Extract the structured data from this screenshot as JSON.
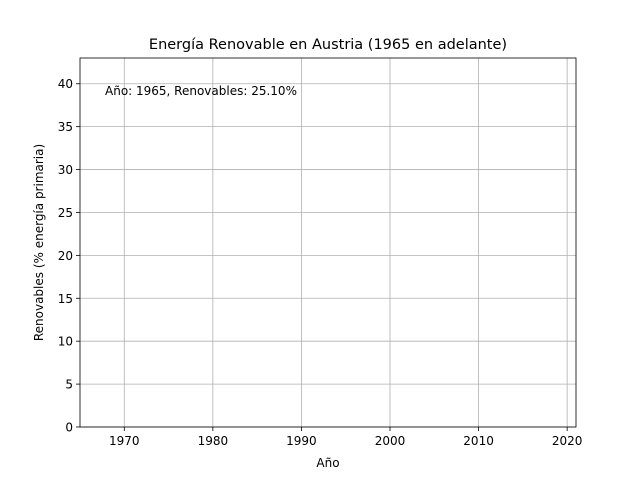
{
  "chart_data": {
    "type": "line",
    "title": "Energía Renovable en Austria (1965 en adelante)",
    "xlabel": "Año",
    "ylabel": "Renovables (% energía primaria)",
    "xlim": [
      1965,
      2021
    ],
    "ylim": [
      0,
      43
    ],
    "xticks": [
      1970,
      1980,
      1990,
      2000,
      2010,
      2020
    ],
    "yticks": [
      0,
      5,
      10,
      15,
      20,
      25,
      30,
      35,
      40
    ],
    "grid": true,
    "series": [
      {
        "x": [
          1965
        ],
        "values": [
          25.1
        ]
      }
    ],
    "annotation": "Año: 1965, Renovables: 25.10%"
  }
}
